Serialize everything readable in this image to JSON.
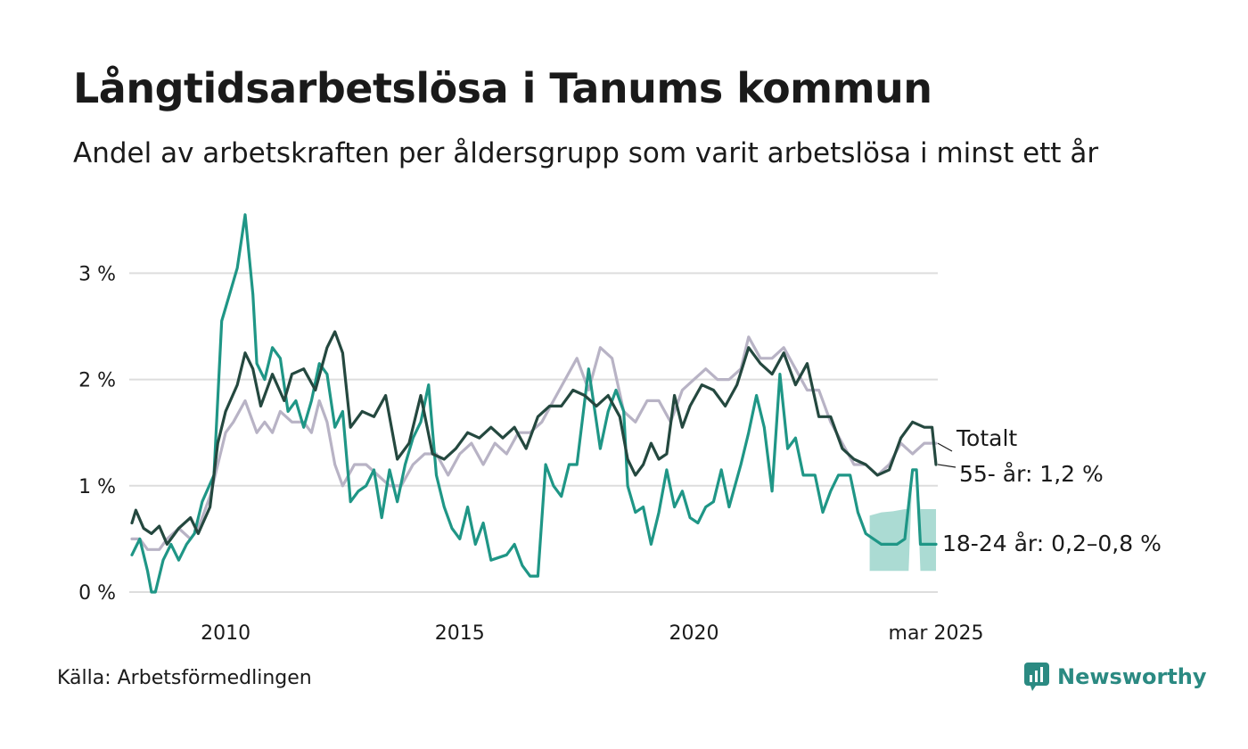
{
  "header": {
    "title": "Långtidsarbetslösa i Tanums kommun",
    "subtitle": "Andel av arbetskraften per åldersgrupp som varit arbetslösa i minst ett år"
  },
  "footer": {
    "source": "Källa: Arbetsförmedlingen",
    "brand": "Newsworthy"
  },
  "colors": {
    "totalt": "#b8b3c5",
    "age55": "#24483f",
    "age18_24": "#1f9686",
    "band": "#a6d9d1",
    "grid": "#dddddd",
    "brand": "#2b8a82"
  },
  "chart_data": {
    "type": "line",
    "x_unit": "month",
    "x_range": [
      "2008-01",
      "2025-03"
    ],
    "ylim": [
      0,
      3.6
    ],
    "y_ticks": [
      {
        "value": 0,
        "label": "0 %"
      },
      {
        "value": 1,
        "label": "1 %"
      },
      {
        "value": 2,
        "label": "2 %"
      },
      {
        "value": 3,
        "label": "3 %"
      }
    ],
    "x_ticks": [
      {
        "value": "2010",
        "label": "2010"
      },
      {
        "value": "2015",
        "label": "2015"
      },
      {
        "value": "2020",
        "label": "2020"
      },
      {
        "value": "2025-03",
        "label": "mar 2025"
      }
    ],
    "grid": true,
    "series": [
      {
        "name": "Totalt",
        "label": "Totalt",
        "color_key": "totalt",
        "points": [
          [
            "2008-01",
            0.5
          ],
          [
            "2008-03",
            0.5
          ],
          [
            "2008-05",
            0.4
          ],
          [
            "2008-08",
            0.4
          ],
          [
            "2008-10",
            0.5
          ],
          [
            "2009-01",
            0.6
          ],
          [
            "2009-04",
            0.5
          ],
          [
            "2009-06",
            0.6
          ],
          [
            "2009-09",
            0.9
          ],
          [
            "2009-11",
            1.2
          ],
          [
            "2010-01",
            1.5
          ],
          [
            "2010-03",
            1.6
          ],
          [
            "2010-06",
            1.8
          ],
          [
            "2010-09",
            1.5
          ],
          [
            "2010-11",
            1.6
          ],
          [
            "2011-01",
            1.5
          ],
          [
            "2011-03",
            1.7
          ],
          [
            "2011-06",
            1.6
          ],
          [
            "2011-09",
            1.6
          ],
          [
            "2011-11",
            1.5
          ],
          [
            "2012-01",
            1.8
          ],
          [
            "2012-03",
            1.6
          ],
          [
            "2012-05",
            1.2
          ],
          [
            "2012-07",
            1.0
          ],
          [
            "2012-10",
            1.2
          ],
          [
            "2013-01",
            1.2
          ],
          [
            "2013-04",
            1.1
          ],
          [
            "2013-07",
            1.0
          ],
          [
            "2013-10",
            1.0
          ],
          [
            "2014-01",
            1.2
          ],
          [
            "2014-04",
            1.3
          ],
          [
            "2014-07",
            1.3
          ],
          [
            "2014-10",
            1.1
          ],
          [
            "2015-01",
            1.3
          ],
          [
            "2015-04",
            1.4
          ],
          [
            "2015-07",
            1.2
          ],
          [
            "2015-10",
            1.4
          ],
          [
            "2016-01",
            1.3
          ],
          [
            "2016-04",
            1.5
          ],
          [
            "2016-07",
            1.5
          ],
          [
            "2016-10",
            1.6
          ],
          [
            "2017-01",
            1.8
          ],
          [
            "2017-04",
            2.0
          ],
          [
            "2017-07",
            2.2
          ],
          [
            "2017-10",
            1.9
          ],
          [
            "2018-01",
            2.3
          ],
          [
            "2018-04",
            2.2
          ],
          [
            "2018-07",
            1.7
          ],
          [
            "2018-10",
            1.6
          ],
          [
            "2019-01",
            1.8
          ],
          [
            "2019-04",
            1.8
          ],
          [
            "2019-07",
            1.6
          ],
          [
            "2019-10",
            1.9
          ],
          [
            "2020-01",
            2.0
          ],
          [
            "2020-04",
            2.1
          ],
          [
            "2020-07",
            2.0
          ],
          [
            "2020-10",
            2.0
          ],
          [
            "2021-01",
            2.1
          ],
          [
            "2021-03",
            2.4
          ],
          [
            "2021-06",
            2.2
          ],
          [
            "2021-09",
            2.2
          ],
          [
            "2021-12",
            2.3
          ],
          [
            "2022-03",
            2.1
          ],
          [
            "2022-06",
            1.9
          ],
          [
            "2022-09",
            1.9
          ],
          [
            "2022-12",
            1.6
          ],
          [
            "2023-03",
            1.4
          ],
          [
            "2023-06",
            1.2
          ],
          [
            "2023-09",
            1.2
          ],
          [
            "2023-12",
            1.1
          ],
          [
            "2024-03",
            1.2
          ],
          [
            "2024-06",
            1.4
          ],
          [
            "2024-09",
            1.3
          ],
          [
            "2024-12",
            1.4
          ],
          [
            "2025-03",
            1.4
          ]
        ]
      },
      {
        "name": "55- år",
        "label": "55- år: 1,2 %",
        "color_key": "age55",
        "points": [
          [
            "2008-01",
            0.65
          ],
          [
            "2008-02",
            0.77
          ],
          [
            "2008-04",
            0.6
          ],
          [
            "2008-06",
            0.55
          ],
          [
            "2008-08",
            0.62
          ],
          [
            "2008-10",
            0.45
          ],
          [
            "2009-01",
            0.6
          ],
          [
            "2009-04",
            0.7
          ],
          [
            "2009-06",
            0.55
          ],
          [
            "2009-09",
            0.8
          ],
          [
            "2009-11",
            1.4
          ],
          [
            "2010-01",
            1.7
          ],
          [
            "2010-04",
            1.95
          ],
          [
            "2010-06",
            2.25
          ],
          [
            "2010-08",
            2.1
          ],
          [
            "2010-10",
            1.75
          ],
          [
            "2011-01",
            2.05
          ],
          [
            "2011-04",
            1.8
          ],
          [
            "2011-06",
            2.05
          ],
          [
            "2011-09",
            2.1
          ],
          [
            "2011-12",
            1.9
          ],
          [
            "2012-03",
            2.3
          ],
          [
            "2012-05",
            2.45
          ],
          [
            "2012-07",
            2.25
          ],
          [
            "2012-09",
            1.55
          ],
          [
            "2012-12",
            1.7
          ],
          [
            "2013-03",
            1.65
          ],
          [
            "2013-06",
            1.85
          ],
          [
            "2013-09",
            1.25
          ],
          [
            "2013-12",
            1.4
          ],
          [
            "2014-03",
            1.85
          ],
          [
            "2014-06",
            1.3
          ],
          [
            "2014-09",
            1.25
          ],
          [
            "2014-12",
            1.35
          ],
          [
            "2015-03",
            1.5
          ],
          [
            "2015-06",
            1.45
          ],
          [
            "2015-09",
            1.55
          ],
          [
            "2015-12",
            1.45
          ],
          [
            "2016-03",
            1.55
          ],
          [
            "2016-06",
            1.35
          ],
          [
            "2016-09",
            1.65
          ],
          [
            "2016-12",
            1.75
          ],
          [
            "2017-03",
            1.75
          ],
          [
            "2017-06",
            1.9
          ],
          [
            "2017-09",
            1.85
          ],
          [
            "2017-12",
            1.75
          ],
          [
            "2018-03",
            1.85
          ],
          [
            "2018-06",
            1.65
          ],
          [
            "2018-08",
            1.25
          ],
          [
            "2018-10",
            1.1
          ],
          [
            "2018-12",
            1.2
          ],
          [
            "2019-02",
            1.4
          ],
          [
            "2019-04",
            1.25
          ],
          [
            "2019-06",
            1.3
          ],
          [
            "2019-08",
            1.85
          ],
          [
            "2019-10",
            1.55
          ],
          [
            "2019-12",
            1.75
          ],
          [
            "2020-03",
            1.95
          ],
          [
            "2020-06",
            1.9
          ],
          [
            "2020-09",
            1.75
          ],
          [
            "2020-12",
            1.95
          ],
          [
            "2021-03",
            2.3
          ],
          [
            "2021-06",
            2.15
          ],
          [
            "2021-09",
            2.05
          ],
          [
            "2021-12",
            2.25
          ],
          [
            "2022-03",
            1.95
          ],
          [
            "2022-06",
            2.15
          ],
          [
            "2022-09",
            1.65
          ],
          [
            "2022-12",
            1.65
          ],
          [
            "2023-03",
            1.35
          ],
          [
            "2023-06",
            1.25
          ],
          [
            "2023-09",
            1.2
          ],
          [
            "2023-12",
            1.1
          ],
          [
            "2024-03",
            1.15
          ],
          [
            "2024-06",
            1.45
          ],
          [
            "2024-09",
            1.6
          ],
          [
            "2024-12",
            1.55
          ],
          [
            "2025-02",
            1.55
          ],
          [
            "2025-03",
            1.2
          ]
        ]
      },
      {
        "name": "18-24 år",
        "label": "18-24 år: 0,2–0,8 %",
        "color_key": "age18_24",
        "points": [
          [
            "2008-01",
            0.35
          ],
          [
            "2008-03",
            0.5
          ],
          [
            "2008-05",
            0.2
          ],
          [
            "2008-06",
            0.0
          ],
          [
            "2008-07",
            0.0
          ],
          [
            "2008-09",
            0.3
          ],
          [
            "2008-11",
            0.45
          ],
          [
            "2009-01",
            0.3
          ],
          [
            "2009-03",
            0.45
          ],
          [
            "2009-05",
            0.55
          ],
          [
            "2009-07",
            0.85
          ],
          [
            "2009-10",
            1.1
          ],
          [
            "2009-12",
            2.55
          ],
          [
            "2010-02",
            2.8
          ],
          [
            "2010-04",
            3.05
          ],
          [
            "2010-06",
            3.55
          ],
          [
            "2010-08",
            2.8
          ],
          [
            "2010-09",
            2.15
          ],
          [
            "2010-11",
            2.0
          ],
          [
            "2011-01",
            2.3
          ],
          [
            "2011-03",
            2.2
          ],
          [
            "2011-05",
            1.7
          ],
          [
            "2011-07",
            1.8
          ],
          [
            "2011-09",
            1.55
          ],
          [
            "2011-11",
            1.8
          ],
          [
            "2012-01",
            2.15
          ],
          [
            "2012-03",
            2.05
          ],
          [
            "2012-05",
            1.55
          ],
          [
            "2012-07",
            1.7
          ],
          [
            "2012-09",
            0.85
          ],
          [
            "2012-11",
            0.95
          ],
          [
            "2013-01",
            1.0
          ],
          [
            "2013-03",
            1.15
          ],
          [
            "2013-05",
            0.7
          ],
          [
            "2013-07",
            1.15
          ],
          [
            "2013-09",
            0.85
          ],
          [
            "2013-11",
            1.2
          ],
          [
            "2014-01",
            1.45
          ],
          [
            "2014-03",
            1.6
          ],
          [
            "2014-05",
            1.95
          ],
          [
            "2014-07",
            1.1
          ],
          [
            "2014-09",
            0.8
          ],
          [
            "2014-11",
            0.6
          ],
          [
            "2015-01",
            0.5
          ],
          [
            "2015-03",
            0.8
          ],
          [
            "2015-05",
            0.45
          ],
          [
            "2015-07",
            0.65
          ],
          [
            "2015-09",
            0.3
          ],
          [
            "2016-01",
            0.35
          ],
          [
            "2016-03",
            0.45
          ],
          [
            "2016-05",
            0.25
          ],
          [
            "2016-07",
            0.15
          ],
          [
            "2016-09",
            0.15
          ],
          [
            "2016-11",
            1.2
          ],
          [
            "2017-01",
            1.0
          ],
          [
            "2017-03",
            0.9
          ],
          [
            "2017-05",
            1.2
          ],
          [
            "2017-07",
            1.2
          ],
          [
            "2017-10",
            2.1
          ],
          [
            "2017-12",
            1.6
          ],
          [
            "2018-01",
            1.35
          ],
          [
            "2018-03",
            1.7
          ],
          [
            "2018-05",
            1.9
          ],
          [
            "2018-07",
            1.7
          ],
          [
            "2018-08",
            1.0
          ],
          [
            "2018-10",
            0.75
          ],
          [
            "2018-12",
            0.8
          ],
          [
            "2019-02",
            0.45
          ],
          [
            "2019-04",
            0.75
          ],
          [
            "2019-06",
            1.15
          ],
          [
            "2019-08",
            0.8
          ],
          [
            "2019-10",
            0.95
          ],
          [
            "2019-12",
            0.7
          ],
          [
            "2020-02",
            0.65
          ],
          [
            "2020-04",
            0.8
          ],
          [
            "2020-06",
            0.85
          ],
          [
            "2020-08",
            1.15
          ],
          [
            "2020-10",
            0.8
          ],
          [
            "2021-01",
            1.2
          ],
          [
            "2021-03",
            1.5
          ],
          [
            "2021-05",
            1.85
          ],
          [
            "2021-07",
            1.55
          ],
          [
            "2021-09",
            0.95
          ],
          [
            "2021-11",
            2.05
          ],
          [
            "2022-01",
            1.35
          ],
          [
            "2022-03",
            1.45
          ],
          [
            "2022-05",
            1.1
          ],
          [
            "2022-08",
            1.1
          ],
          [
            "2022-10",
            0.75
          ],
          [
            "2022-12",
            0.95
          ],
          [
            "2023-02",
            1.1
          ],
          [
            "2023-05",
            1.1
          ],
          [
            "2023-07",
            0.75
          ],
          [
            "2023-09",
            0.55
          ],
          [
            "2023-11",
            0.5
          ],
          [
            "2024-01",
            0.45
          ],
          [
            "2024-05",
            0.45
          ],
          [
            "2024-07",
            0.5
          ],
          [
            "2024-09",
            1.15
          ],
          [
            "2024-10",
            1.15
          ],
          [
            "2024-11",
            0.45
          ],
          [
            "2025-03",
            0.45
          ]
        ],
        "interval": {
          "label": "0,2–0,8 %",
          "points": [
            [
              "2023-10",
              0.2,
              0.72
            ],
            [
              "2024-01",
              0.2,
              0.75
            ],
            [
              "2024-04",
              0.2,
              0.76
            ],
            [
              "2024-07",
              0.2,
              0.78
            ],
            [
              "2024-08",
              0.2,
              0.78
            ],
            [
              "2024-09",
              1.15,
              1.15
            ],
            [
              "2024-10",
              1.15,
              1.15
            ],
            [
              "2024-11",
              0.2,
              0.78
            ],
            [
              "2025-03",
              0.2,
              0.78
            ]
          ]
        }
      }
    ]
  }
}
